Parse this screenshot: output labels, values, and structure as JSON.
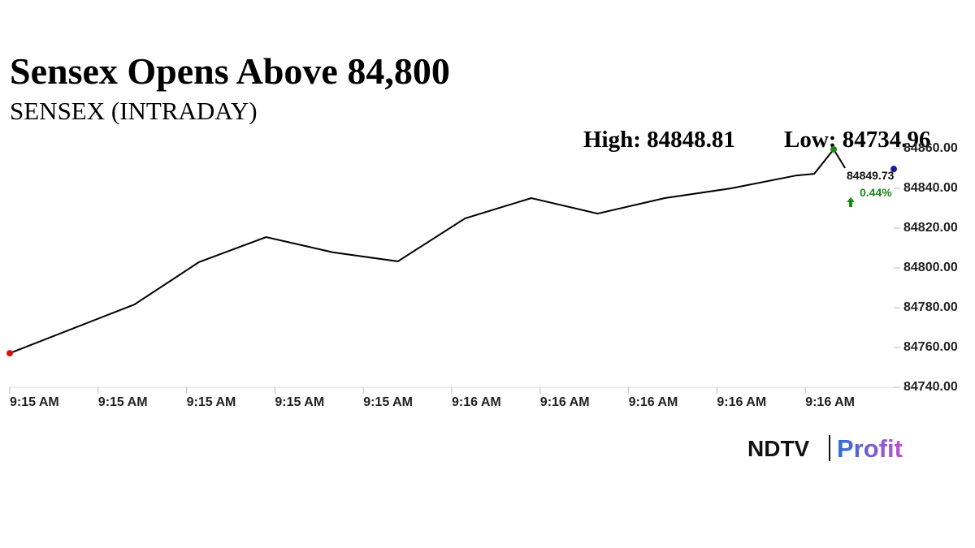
{
  "chart_data": {
    "type": "line",
    "title": "Sensex Opens Above 84,800",
    "subtitle": "SENSEX (INTRADAY)",
    "annotations": {
      "high": "High: 84848.81",
      "low": "Low: 84734.96",
      "last": "84849.73",
      "change": {
        "value": 0.44,
        "label": "0.44%"
      }
    },
    "series": [
      {
        "name": "SENSEX",
        "color": "#000000",
        "x": [
          0,
          1.41,
          2.14,
          2.9,
          3.66,
          4.39,
          5.15,
          5.9,
          6.65,
          7.41,
          8.16,
          8.9,
          9.1,
          9.32,
          9.45
        ],
        "values": [
          84757.1,
          84781.6,
          84802.9,
          84815.5,
          84807.8,
          84803.3,
          84824.9,
          84835.1,
          84827.3,
          84835.1,
          84840.0,
          84846.5,
          84847.3,
          84859.6,
          84850.2
        ]
      }
    ],
    "last_point": {
      "x": 10,
      "value": 84849.73
    },
    "start_color": "#e01010",
    "high_color": "#1a8a1a",
    "last_color": "#1a1aa0",
    "change_color": "#1a8a1a",
    "xlim": [
      0,
      10
    ],
    "xticks": [
      {
        "value": 0,
        "label": "9:15 AM"
      },
      {
        "value": 1,
        "label": "9:15 AM"
      },
      {
        "value": 2,
        "label": "9:15 AM"
      },
      {
        "value": 3,
        "label": "9:15 AM"
      },
      {
        "value": 4,
        "label": "9:15 AM"
      },
      {
        "value": 5,
        "label": "9:16 AM"
      },
      {
        "value": 6,
        "label": "9:16 AM"
      },
      {
        "value": 7,
        "label": "9:16 AM"
      },
      {
        "value": 8,
        "label": "9:16 AM"
      },
      {
        "value": 9,
        "label": "9:16 AM"
      }
    ],
    "ylim": [
      84740,
      84860
    ],
    "yticks": [
      {
        "value": 84740,
        "label": "84740.00"
      },
      {
        "value": 84760,
        "label": "84760.00"
      },
      {
        "value": 84780,
        "label": "84780.00"
      },
      {
        "value": 84800,
        "label": "84800.00"
      },
      {
        "value": 84820,
        "label": "84820.00"
      },
      {
        "value": 84840,
        "label": "84840.00"
      },
      {
        "value": 84860,
        "label": "84860.00"
      }
    ]
  },
  "logo": {
    "left": "NDTV",
    "right": "Profit"
  }
}
